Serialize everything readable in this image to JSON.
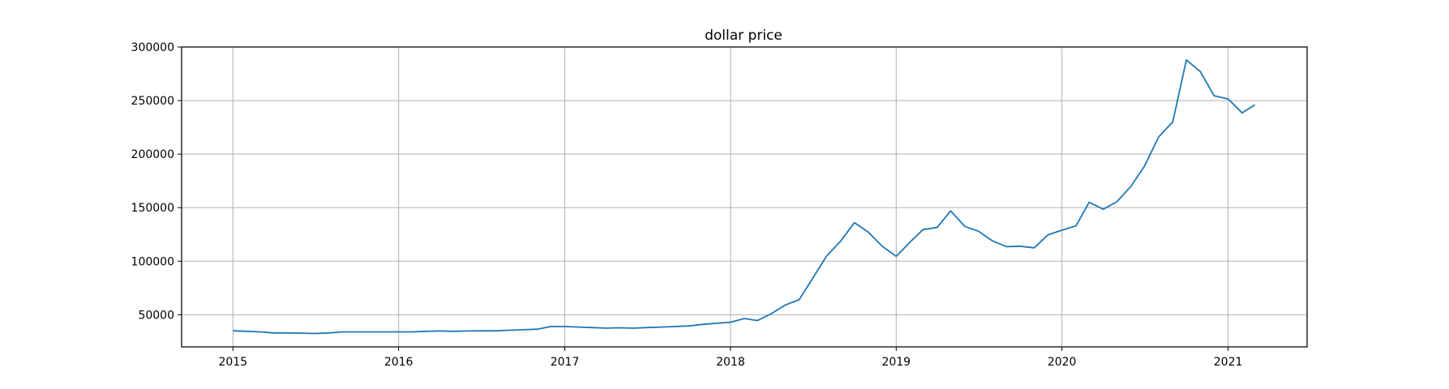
{
  "chart_data": {
    "type": "line",
    "title": "dollar price",
    "xlabel": "",
    "ylabel": "",
    "xlim": [
      "2014-09-10",
      "2021-06-24"
    ],
    "ylim": [
      20000,
      300000
    ],
    "grid": true,
    "line_color": "#1f77b4",
    "x_ticks": [
      "2015",
      "2016",
      "2017",
      "2018",
      "2019",
      "2020",
      "2021"
    ],
    "x_tick_dates": [
      "2015-01-01",
      "2016-01-01",
      "2017-01-01",
      "2018-01-01",
      "2019-01-01",
      "2020-01-01",
      "2021-01-01"
    ],
    "y_ticks": [
      50000,
      100000,
      150000,
      200000,
      250000,
      300000
    ],
    "y_tick_labels": [
      "50000",
      "100000",
      "150000",
      "200000",
      "250000",
      "300000"
    ],
    "series": [
      {
        "x": [
          "2015-01-01",
          "2015-02-01",
          "2015-03-01",
          "2015-04-01",
          "2015-05-01",
          "2015-06-01",
          "2015-07-01",
          "2015-08-01",
          "2015-09-01",
          "2015-10-01",
          "2015-11-01",
          "2015-12-01",
          "2016-01-01",
          "2016-02-01",
          "2016-03-01",
          "2016-04-01",
          "2016-05-01",
          "2016-06-01",
          "2016-07-01",
          "2016-08-01",
          "2016-09-01",
          "2016-10-01",
          "2016-11-01",
          "2016-12-01",
          "2017-01-01",
          "2017-02-01",
          "2017-03-01",
          "2017-04-01",
          "2017-05-01",
          "2017-06-01",
          "2017-07-01",
          "2017-08-01",
          "2017-09-01",
          "2017-10-01",
          "2017-11-01",
          "2017-12-01",
          "2018-01-01",
          "2018-02-01",
          "2018-03-01",
          "2018-04-01",
          "2018-05-01",
          "2018-06-01",
          "2018-07-01",
          "2018-08-01",
          "2018-09-01",
          "2018-10-01",
          "2018-11-01",
          "2018-12-01",
          "2019-01-01",
          "2019-02-01",
          "2019-03-01",
          "2019-04-01",
          "2019-05-01",
          "2019-06-01",
          "2019-07-01",
          "2019-08-01",
          "2019-09-01",
          "2019-10-01",
          "2019-11-01",
          "2019-12-01",
          "2020-01-01",
          "2020-02-01",
          "2020-03-01",
          "2020-04-01",
          "2020-05-01",
          "2020-06-01",
          "2020-07-01",
          "2020-08-01",
          "2020-09-01",
          "2020-10-01",
          "2020-11-01",
          "2020-12-01",
          "2021-01-01",
          "2021-02-01",
          "2021-03-01"
        ],
        "values": [
          35000,
          34500,
          34000,
          33000,
          33000,
          32800,
          32500,
          33000,
          34000,
          34000,
          34000,
          34000,
          34000,
          34000,
          34500,
          34800,
          34500,
          34800,
          35000,
          35000,
          35500,
          36000,
          36500,
          39000,
          39000,
          38500,
          38000,
          37500,
          37800,
          37500,
          38000,
          38500,
          39000,
          39500,
          41000,
          42000,
          43000,
          46500,
          44500,
          51000,
          59000,
          64000,
          84000,
          105000,
          119000,
          136000,
          127000,
          114000,
          104500,
          118000,
          129500,
          131500,
          147000,
          132500,
          128000,
          119000,
          113500,
          114000,
          112500,
          124500,
          129000,
          133000,
          155000,
          148500,
          155500,
          170000,
          189000,
          216000,
          230000,
          288000,
          277000,
          254500,
          251500,
          238500,
          246000
        ]
      }
    ]
  }
}
